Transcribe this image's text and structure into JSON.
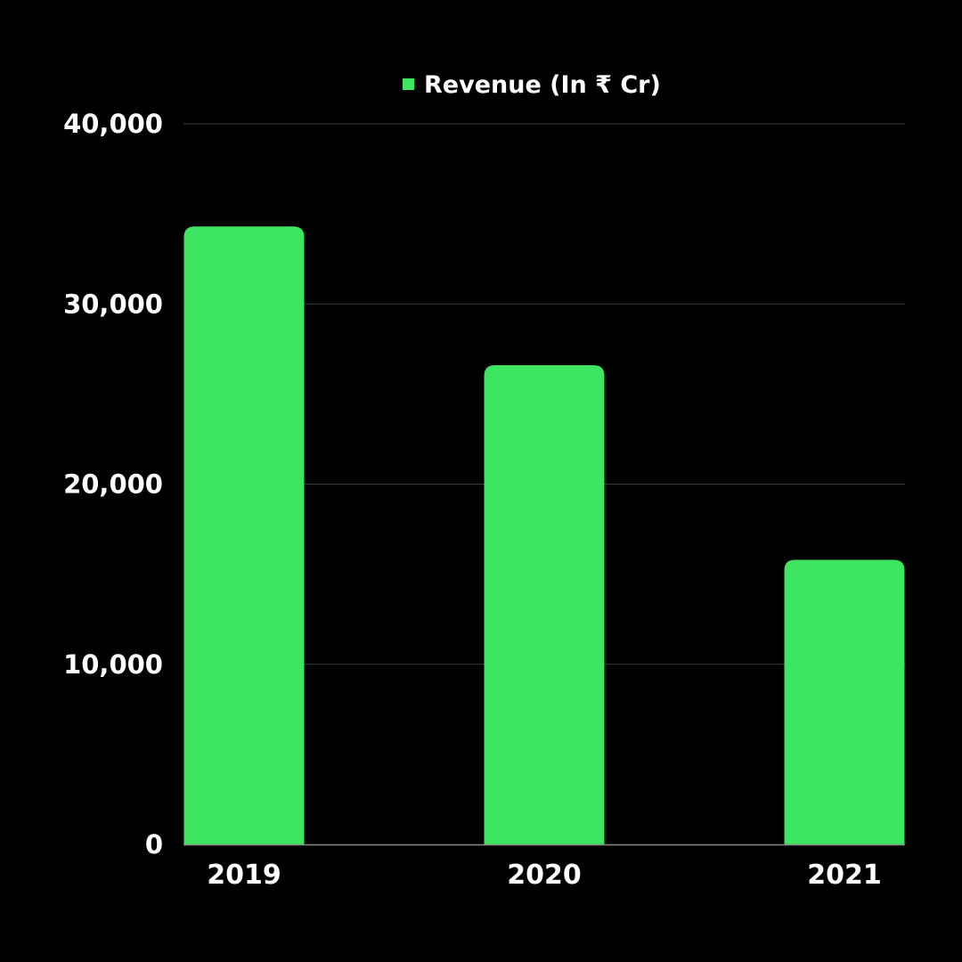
{
  "chart_data": {
    "type": "bar",
    "title": "",
    "xlabel": "",
    "ylabel": "",
    "categories": [
      "2019",
      "2020",
      "2021"
    ],
    "series": [
      {
        "name": "Revenue (In ₹ Cr)",
        "values": [
          34300,
          26600,
          15800
        ]
      }
    ],
    "ylim": [
      0,
      40000
    ],
    "y_ticks": [
      "0",
      "10,000",
      "20,000",
      "30,000",
      "40,000"
    ],
    "y_tick_values": [
      0,
      10000,
      20000,
      30000,
      40000
    ],
    "grid": true,
    "legend_position": "top-center",
    "colors": {
      "background": "#000000",
      "bar": "#3de561",
      "gridline": "#3a3a3a",
      "axis": "#8a8a8a",
      "text": "#ffffff"
    }
  }
}
